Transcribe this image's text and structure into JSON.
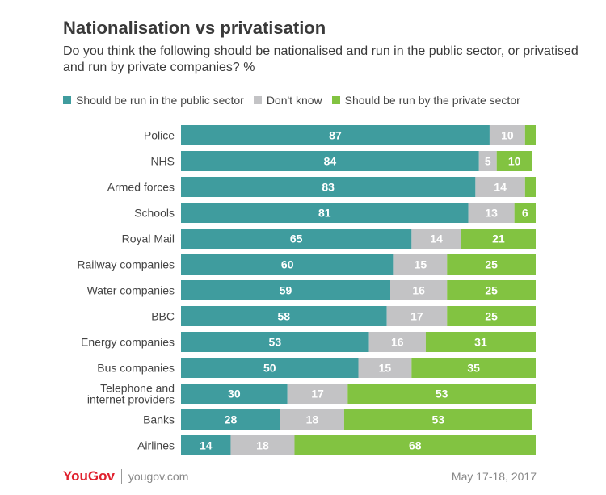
{
  "title": "Nationalisation vs privatisation",
  "subtitle": "Do you think the following should be nationalised and run in the public sector, or privatised and run by private companies? %",
  "legend": {
    "public": "Should be run in the public sector",
    "dontknow": "Don't know",
    "private": "Should be run by the private sector"
  },
  "colors": {
    "public": "#3f9c9e",
    "dontknow": "#c3c3c5",
    "private": "#82c341"
  },
  "footer": {
    "brand": "YouGov",
    "site": "yougov.com",
    "date": "May 17-18, 2017"
  },
  "chart_data": {
    "type": "bar",
    "orientation": "horizontal",
    "stacked": true,
    "categories": [
      "Police",
      "NHS",
      "Armed forces",
      "Schools",
      "Royal Mail",
      "Railway companies",
      "Water companies",
      "BBC",
      "Energy companies",
      "Bus companies",
      "Telephone and internet providers",
      "Banks",
      "Airlines"
    ],
    "series": [
      {
        "name": "Should be run in the public sector",
        "values": [
          87,
          84,
          83,
          81,
          65,
          60,
          59,
          58,
          53,
          50,
          30,
          28,
          14
        ]
      },
      {
        "name": "Don't know",
        "values": [
          10,
          5,
          14,
          13,
          14,
          15,
          16,
          17,
          16,
          15,
          17,
          18,
          18
        ]
      },
      {
        "name": "Should be run by the private sector",
        "values": [
          3,
          10,
          3,
          6,
          21,
          25,
          25,
          25,
          31,
          35,
          53,
          53,
          68
        ]
      }
    ],
    "hidden_labels": [
      [],
      [],
      [
        2
      ],
      [],
      [],
      [],
      [],
      [],
      [],
      [],
      [],
      [],
      []
    ],
    "xlim": [
      0,
      100
    ],
    "unit": "%",
    "legend_position": "top-left"
  }
}
